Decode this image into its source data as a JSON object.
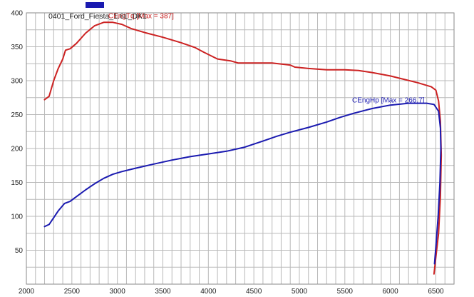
{
  "chart_data": {
    "type": "line",
    "title": "0401_Ford_Fiesta_1.6L_DK1",
    "title_swatch_color": "#1a1ab0",
    "xlabel": "",
    "ylabel": "",
    "xlim": [
      2000,
      6700
    ],
    "ylim": [
      0,
      400
    ],
    "x_ticks": [
      2000,
      2500,
      3000,
      3500,
      4000,
      4500,
      5000,
      5500,
      6000,
      6500
    ],
    "y_ticks": [
      50,
      100,
      150,
      200,
      250,
      300,
      350,
      400
    ],
    "x_grid_step": 100,
    "y_grid_step": 25,
    "grid": true,
    "series": [
      {
        "name": "CEngTq [Max = 387]",
        "color": "#cc2222",
        "label_at": [
          2900,
          392
        ],
        "points": [
          [
            2200,
            272
          ],
          [
            2250,
            277
          ],
          [
            2300,
            300
          ],
          [
            2350,
            318
          ],
          [
            2400,
            332
          ],
          [
            2430,
            345
          ],
          [
            2480,
            347
          ],
          [
            2550,
            355
          ],
          [
            2650,
            370
          ],
          [
            2750,
            381
          ],
          [
            2850,
            386
          ],
          [
            2950,
            386
          ],
          [
            3050,
            383
          ],
          [
            3150,
            377
          ],
          [
            3300,
            371
          ],
          [
            3500,
            364
          ],
          [
            3700,
            356
          ],
          [
            3850,
            349
          ],
          [
            3950,
            342
          ],
          [
            4100,
            332
          ],
          [
            4250,
            329
          ],
          [
            4330,
            326
          ],
          [
            4500,
            326
          ],
          [
            4700,
            326
          ],
          [
            4900,
            323
          ],
          [
            4950,
            320
          ],
          [
            5100,
            318
          ],
          [
            5300,
            316
          ],
          [
            5500,
            316
          ],
          [
            5650,
            315
          ],
          [
            5800,
            312
          ],
          [
            6000,
            307
          ],
          [
            6150,
            302
          ],
          [
            6300,
            297
          ],
          [
            6450,
            291
          ],
          [
            6500,
            286
          ],
          [
            6530,
            270
          ],
          [
            6550,
            240
          ],
          [
            6560,
            190
          ],
          [
            6550,
            130
          ],
          [
            6530,
            75
          ],
          [
            6500,
            40
          ],
          [
            6480,
            15
          ]
        ]
      },
      {
        "name": "CEngHp [Max = 266.7]",
        "color": "#1a1ab0",
        "label_at": [
          5580,
          268
        ],
        "points": [
          [
            2200,
            85
          ],
          [
            2250,
            88
          ],
          [
            2300,
            98
          ],
          [
            2350,
            108
          ],
          [
            2420,
            119
          ],
          [
            2480,
            122
          ],
          [
            2550,
            129
          ],
          [
            2650,
            139
          ],
          [
            2750,
            148
          ],
          [
            2850,
            156
          ],
          [
            2950,
            162
          ],
          [
            3050,
            166
          ],
          [
            3200,
            171
          ],
          [
            3400,
            177
          ],
          [
            3600,
            183
          ],
          [
            3800,
            188
          ],
          [
            4000,
            192
          ],
          [
            4200,
            196
          ],
          [
            4400,
            202
          ],
          [
            4600,
            211
          ],
          [
            4750,
            218
          ],
          [
            4900,
            224
          ],
          [
            5100,
            231
          ],
          [
            5300,
            239
          ],
          [
            5450,
            246
          ],
          [
            5600,
            252
          ],
          [
            5800,
            259
          ],
          [
            6000,
            264
          ],
          [
            6200,
            266.7
          ],
          [
            6400,
            266.7
          ],
          [
            6480,
            265
          ],
          [
            6530,
            255
          ],
          [
            6550,
            230
          ],
          [
            6555,
            200
          ],
          [
            6545,
            150
          ],
          [
            6525,
            100
          ],
          [
            6500,
            55
          ],
          [
            6485,
            30
          ]
        ]
      }
    ]
  }
}
